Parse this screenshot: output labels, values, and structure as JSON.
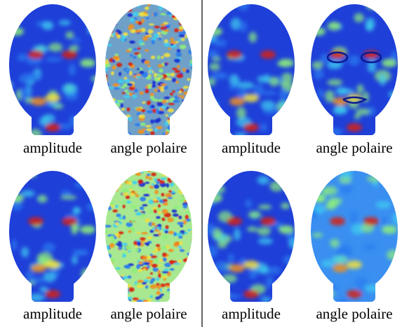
{
  "rows": [
    {
      "panels": [
        {
          "label": "amplitude"
        },
        {
          "label": "angle polaire"
        },
        {
          "label": "amplitude"
        },
        {
          "label": "angle polaire"
        }
      ]
    },
    {
      "panels": [
        {
          "label": "amplitude"
        },
        {
          "label": "angle polaire"
        },
        {
          "label": "amplitude"
        },
        {
          "label": "angle polaire"
        }
      ]
    }
  ]
}
